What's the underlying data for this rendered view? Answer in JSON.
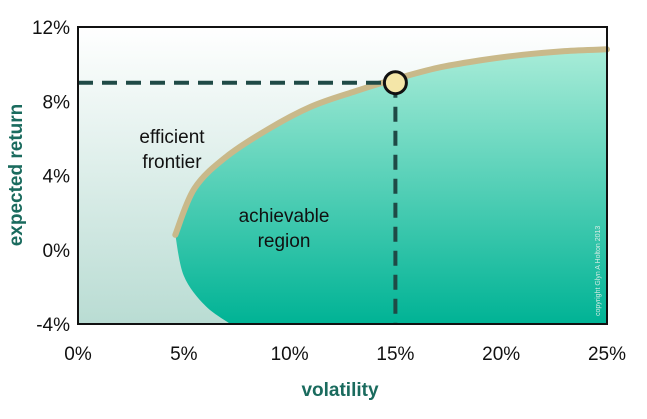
{
  "chart_data": {
    "type": "area",
    "xlabel": "volatility",
    "ylabel": "expected return",
    "x_ticks": [
      "0%",
      "5%",
      "10%",
      "15%",
      "20%",
      "25%"
    ],
    "y_ticks": [
      "12%",
      "8%",
      "4%",
      "0%",
      "-4%"
    ],
    "xlim": [
      0,
      25
    ],
    "ylim": [
      -4,
      12
    ],
    "frontier": {
      "x": [
        4.6,
        5.5,
        7,
        9,
        11,
        13,
        15,
        17,
        19,
        21,
        23,
        25
      ],
      "y": [
        0.8,
        3.3,
        5.0,
        6.5,
        7.7,
        8.5,
        9.2,
        9.8,
        10.2,
        10.5,
        10.7,
        10.8
      ]
    },
    "lower_boundary": {
      "x": [
        4.6,
        5.0,
        6.0,
        7.2
      ],
      "y": [
        0.8,
        -1.4,
        -3.0,
        -4.0
      ]
    },
    "highlight_point": {
      "x": 15,
      "y": 9.0
    },
    "annotations": {
      "frontier_line1": "efficient",
      "frontier_line2": "frontier",
      "region_line1": "achievable",
      "region_line2": "region"
    },
    "copyright": "copyright Glyn A Holton 2013",
    "colors": {
      "frontier": "#c9b98a",
      "region_top": "#a8ecd8",
      "region_bottom": "#00b395",
      "background_top": "#ffffff",
      "background_bottom": "#b9dcd3",
      "point_fill": "#f4e6a8",
      "dash": "#1f4a46",
      "axis_title": "#1a6b5e"
    }
  }
}
